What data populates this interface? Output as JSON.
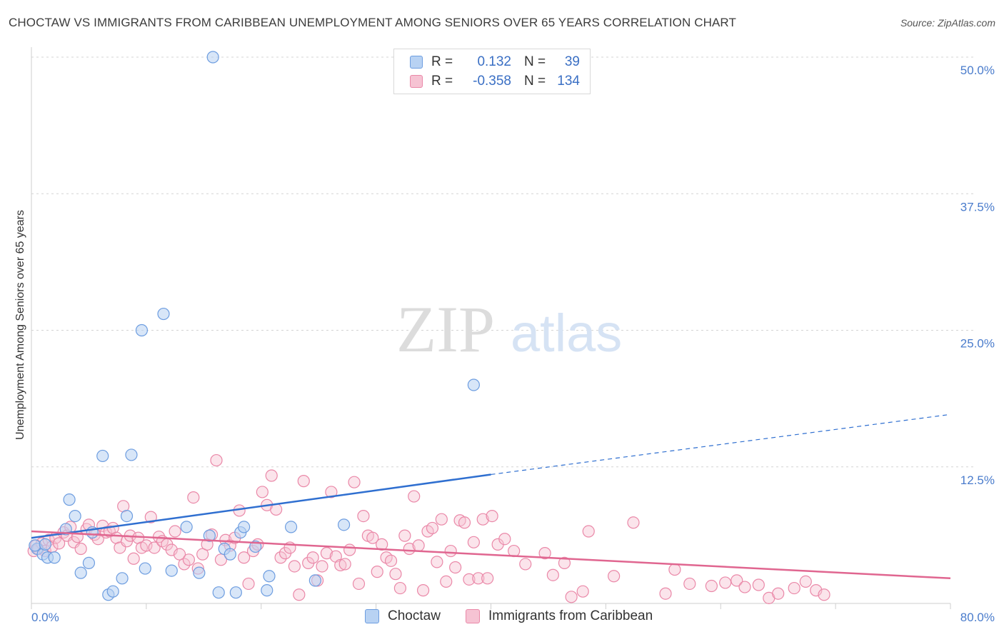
{
  "header": {
    "title": "CHOCTAW VS IMMIGRANTS FROM CARIBBEAN UNEMPLOYMENT AMONG SENIORS OVER 65 YEARS CORRELATION CHART",
    "source": "Source: ZipAtlas.com"
  },
  "watermark": {
    "zip": "ZIP",
    "atlas": "atlas"
  },
  "colors": {
    "choctaw_fill": "#b8d2f3",
    "choctaw_stroke": "#6d9de0",
    "choctaw_line": "#2f6fd0",
    "carib_fill": "#f6c3d3",
    "carib_stroke": "#ea88a8",
    "carib_line": "#e06690",
    "tick_label": "#4a7ccc",
    "grid": "#d4d4d4"
  },
  "legend": {
    "rows": [
      {
        "r_label": "R =",
        "r_value": "0.132",
        "n_label": "N =",
        "n_value": "39"
      },
      {
        "r_label": "R =",
        "r_value": "-0.358",
        "n_label": "N =",
        "n_value": "134"
      }
    ]
  },
  "bottom_legend": {
    "series1": "Choctaw",
    "series2": "Immigrants from Caribbean"
  },
  "chart_data": {
    "type": "scatter",
    "title": "CHOCTAW VS IMMIGRANTS FROM CARIBBEAN UNEMPLOYMENT AMONG SENIORS OVER 65 YEARS CORRELATION CHART",
    "xlabel": "",
    "ylabel": "Unemployment Among Seniors over 65 years",
    "xlim": [
      0,
      80
    ],
    "ylim": [
      0,
      50
    ],
    "x_tick_labels": [
      "0.0%",
      "80.0%"
    ],
    "y_ticks": [
      12.5,
      25.0,
      37.5,
      50.0
    ],
    "y_tick_labels": [
      "12.5%",
      "25.0%",
      "37.5%",
      "50.0%"
    ],
    "grid": true,
    "series": [
      {
        "name": "Choctaw",
        "r": 0.132,
        "n": 39,
        "trend": {
          "x0": 0,
          "y0": 6.0,
          "x1": 40,
          "y1": 11.8,
          "dashed_to_x": 80,
          "dashed_to_y": 17.3
        },
        "points": [
          [
            0.5,
            5.0
          ],
          [
            1.0,
            4.5
          ],
          [
            1.4,
            4.2
          ],
          [
            2.0,
            4.2
          ],
          [
            3.0,
            6.8
          ],
          [
            3.3,
            9.5
          ],
          [
            3.8,
            8.0
          ],
          [
            4.3,
            2.8
          ],
          [
            5.0,
            3.7
          ],
          [
            5.3,
            6.5
          ],
          [
            6.2,
            13.5
          ],
          [
            6.7,
            0.8
          ],
          [
            7.1,
            1.1
          ],
          [
            7.9,
            2.3
          ],
          [
            8.3,
            8.0
          ],
          [
            8.7,
            13.6
          ],
          [
            9.6,
            25.0
          ],
          [
            9.9,
            3.2
          ],
          [
            11.5,
            26.5
          ],
          [
            12.2,
            3.0
          ],
          [
            13.5,
            7.0
          ],
          [
            14.6,
            2.8
          ],
          [
            15.5,
            6.2
          ],
          [
            15.8,
            50.0
          ],
          [
            16.3,
            1.0
          ],
          [
            16.8,
            5.0
          ],
          [
            17.3,
            4.5
          ],
          [
            17.8,
            1.0
          ],
          [
            18.2,
            6.5
          ],
          [
            18.5,
            7.0
          ],
          [
            19.5,
            5.2
          ],
          [
            20.5,
            1.2
          ],
          [
            20.7,
            2.5
          ],
          [
            22.6,
            7.0
          ],
          [
            24.7,
            2.1
          ],
          [
            27.2,
            7.2
          ],
          [
            38.5,
            20.0
          ],
          [
            0.3,
            5.3
          ],
          [
            1.2,
            5.4
          ]
        ]
      },
      {
        "name": "Immigrants from Caribbean",
        "r": -0.358,
        "n": 134,
        "trend": {
          "x0": 0,
          "y0": 6.6,
          "x1": 80,
          "y1": 2.3
        },
        "points": [
          [
            0.2,
            4.8
          ],
          [
            0.4,
            5.3
          ],
          [
            0.6,
            5.0
          ],
          [
            0.9,
            5.5
          ],
          [
            1.2,
            4.8
          ],
          [
            1.5,
            5.8
          ],
          [
            1.8,
            5.2
          ],
          [
            2.1,
            6.0
          ],
          [
            2.4,
            5.5
          ],
          [
            2.8,
            6.5
          ],
          [
            3.1,
            6.2
          ],
          [
            3.4,
            7.0
          ],
          [
            3.7,
            5.6
          ],
          [
            4.0,
            6.1
          ],
          [
            4.3,
            5.0
          ],
          [
            4.8,
            6.8
          ],
          [
            5.0,
            7.2
          ],
          [
            5.5,
            6.3
          ],
          [
            5.8,
            5.9
          ],
          [
            6.2,
            7.1
          ],
          [
            6.5,
            6.5
          ],
          [
            6.8,
            6.6
          ],
          [
            7.1,
            6.9
          ],
          [
            7.4,
            6.0
          ],
          [
            7.7,
            5.1
          ],
          [
            8.0,
            8.9
          ],
          [
            8.3,
            5.7
          ],
          [
            8.6,
            6.2
          ],
          [
            8.9,
            4.1
          ],
          [
            9.3,
            6.0
          ],
          [
            9.6,
            5.1
          ],
          [
            10.0,
            5.3
          ],
          [
            10.4,
            7.9
          ],
          [
            10.7,
            5.1
          ],
          [
            11.1,
            6.1
          ],
          [
            11.4,
            5.7
          ],
          [
            11.8,
            5.4
          ],
          [
            12.2,
            4.9
          ],
          [
            12.5,
            6.6
          ],
          [
            12.9,
            4.5
          ],
          [
            13.3,
            3.6
          ],
          [
            13.7,
            4.0
          ],
          [
            14.1,
            9.7
          ],
          [
            14.5,
            3.2
          ],
          [
            14.9,
            4.5
          ],
          [
            15.3,
            5.4
          ],
          [
            15.7,
            6.3
          ],
          [
            16.1,
            13.1
          ],
          [
            16.5,
            4.0
          ],
          [
            16.9,
            5.8
          ],
          [
            17.3,
            5.3
          ],
          [
            17.7,
            6.0
          ],
          [
            18.1,
            8.5
          ],
          [
            18.5,
            4.2
          ],
          [
            18.9,
            1.8
          ],
          [
            19.3,
            4.8
          ],
          [
            19.7,
            5.4
          ],
          [
            20.1,
            10.2
          ],
          [
            20.5,
            9.0
          ],
          [
            20.9,
            11.7
          ],
          [
            21.3,
            8.6
          ],
          [
            21.7,
            4.2
          ],
          [
            22.1,
            4.6
          ],
          [
            22.5,
            5.1
          ],
          [
            22.9,
            3.4
          ],
          [
            23.3,
            0.8
          ],
          [
            23.7,
            11.2
          ],
          [
            24.1,
            3.7
          ],
          [
            24.5,
            4.2
          ],
          [
            24.9,
            2.1
          ],
          [
            25.3,
            3.4
          ],
          [
            25.7,
            4.6
          ],
          [
            26.1,
            10.2
          ],
          [
            26.5,
            4.3
          ],
          [
            26.9,
            3.5
          ],
          [
            27.3,
            3.6
          ],
          [
            27.7,
            4.9
          ],
          [
            28.1,
            11.1
          ],
          [
            28.5,
            1.8
          ],
          [
            28.9,
            8.0
          ],
          [
            29.3,
            6.2
          ],
          [
            29.7,
            6.0
          ],
          [
            30.1,
            2.9
          ],
          [
            30.5,
            5.4
          ],
          [
            30.9,
            4.2
          ],
          [
            31.3,
            3.9
          ],
          [
            31.7,
            2.7
          ],
          [
            32.1,
            1.4
          ],
          [
            32.5,
            6.2
          ],
          [
            32.9,
            5.0
          ],
          [
            33.3,
            9.8
          ],
          [
            33.7,
            5.3
          ],
          [
            34.1,
            1.2
          ],
          [
            34.5,
            6.6
          ],
          [
            34.9,
            6.9
          ],
          [
            35.3,
            3.8
          ],
          [
            35.7,
            7.7
          ],
          [
            36.1,
            2.0
          ],
          [
            36.5,
            4.8
          ],
          [
            36.9,
            3.3
          ],
          [
            37.3,
            7.6
          ],
          [
            37.7,
            7.4
          ],
          [
            38.1,
            2.2
          ],
          [
            38.5,
            5.6
          ],
          [
            38.9,
            2.3
          ],
          [
            39.3,
            7.7
          ],
          [
            39.7,
            2.3
          ],
          [
            40.1,
            8.0
          ],
          [
            40.6,
            5.4
          ],
          [
            41.2,
            5.9
          ],
          [
            42.0,
            4.8
          ],
          [
            43.0,
            3.6
          ],
          [
            44.7,
            4.6
          ],
          [
            45.4,
            2.6
          ],
          [
            46.4,
            3.7
          ],
          [
            47.0,
            0.6
          ],
          [
            48.0,
            1.1
          ],
          [
            48.5,
            6.6
          ],
          [
            50.7,
            2.5
          ],
          [
            52.4,
            7.4
          ],
          [
            55.2,
            0.9
          ],
          [
            56.0,
            3.1
          ],
          [
            57.3,
            1.8
          ],
          [
            59.2,
            1.6
          ],
          [
            60.4,
            1.9
          ],
          [
            61.4,
            2.1
          ],
          [
            62.1,
            1.5
          ],
          [
            63.3,
            1.7
          ],
          [
            64.2,
            0.5
          ],
          [
            65.0,
            0.9
          ],
          [
            66.4,
            1.4
          ],
          [
            67.4,
            2.0
          ],
          [
            68.3,
            1.2
          ],
          [
            69.0,
            0.8
          ]
        ]
      }
    ]
  }
}
